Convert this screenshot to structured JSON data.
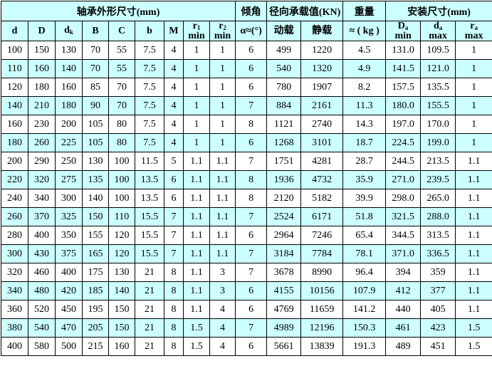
{
  "groups": [
    {
      "label": "轴承外形尺寸(mm)",
      "span": 9
    },
    {
      "label": "倾角",
      "span": 1
    },
    {
      "label": "径向承载值(KN)",
      "span": 2
    },
    {
      "label": "重量",
      "span": 1
    },
    {
      "label": "安装尺寸(mm)",
      "span": 3
    }
  ],
  "columns": [
    {
      "main": "d",
      "sub": "",
      "under": ""
    },
    {
      "main": "D",
      "sub": "",
      "under": ""
    },
    {
      "main": "d",
      "sub": "k",
      "under": ""
    },
    {
      "main": "B",
      "sub": "",
      "under": ""
    },
    {
      "main": "C",
      "sub": "",
      "under": ""
    },
    {
      "main": "b",
      "sub": "",
      "under": ""
    },
    {
      "main": "M",
      "sub": "",
      "under": ""
    },
    {
      "main": "r",
      "sub": "1",
      "under": "min"
    },
    {
      "main": "r",
      "sub": "2",
      "under": "min"
    },
    {
      "main": "α≈(°)",
      "sub": "",
      "under": ""
    },
    {
      "main": "动载",
      "sub": "",
      "under": ""
    },
    {
      "main": "静载",
      "sub": "",
      "under": ""
    },
    {
      "main": "≈ ( kg )",
      "sub": "",
      "under": ""
    },
    {
      "main": "D",
      "sub": "a",
      "under": "min"
    },
    {
      "main": "d",
      "sub": "a",
      "under": "max"
    },
    {
      "main": "r",
      "sub": "a",
      "under": "max"
    }
  ],
  "rows": [
    [
      "100",
      "150",
      "130",
      "70",
      "55",
      "7.5",
      "4",
      "1",
      "1",
      "6",
      "499",
      "1220",
      "4.5",
      "131.0",
      "109.5",
      "1"
    ],
    [
      "110",
      "160",
      "140",
      "70",
      "55",
      "7.5",
      "4",
      "1",
      "1",
      "6",
      "540",
      "1320",
      "4.9",
      "141.5",
      "121.0",
      "1"
    ],
    [
      "120",
      "180",
      "160",
      "85",
      "70",
      "7.5",
      "4",
      "1",
      "1",
      "6",
      "780",
      "1907",
      "8.2",
      "157.5",
      "135.5",
      "1"
    ],
    [
      "140",
      "210",
      "180",
      "90",
      "70",
      "7.5",
      "4",
      "1",
      "1",
      "7",
      "884",
      "2161",
      "11.3",
      "180.0",
      "155.5",
      "1"
    ],
    [
      "160",
      "230",
      "200",
      "105",
      "80",
      "7.5",
      "4",
      "1",
      "1",
      "8",
      "1121",
      "2740",
      "14.3",
      "197.0",
      "170.0",
      "1"
    ],
    [
      "180",
      "260",
      "225",
      "105",
      "80",
      "7.5",
      "4",
      "1",
      "1",
      "6",
      "1268",
      "3101",
      "18.7",
      "224.5",
      "199.0",
      "1"
    ],
    [
      "200",
      "290",
      "250",
      "130",
      "100",
      "11.5",
      "5",
      "1.1",
      "1.1",
      "7",
      "1751",
      "4281",
      "28.7",
      "244.5",
      "213.5",
      "1.1"
    ],
    [
      "220",
      "320",
      "275",
      "135",
      "100",
      "13.5",
      "6",
      "1.1",
      "1.1",
      "8",
      "1936",
      "4732",
      "35.9",
      "271.0",
      "239.5",
      "1.1"
    ],
    [
      "240",
      "340",
      "300",
      "140",
      "100",
      "13.5",
      "6",
      "1.1",
      "1.1",
      "8",
      "2120",
      "5182",
      "39.9",
      "298.0",
      "265.0",
      "1.1"
    ],
    [
      "260",
      "370",
      "325",
      "150",
      "110",
      "15.5",
      "7",
      "1.1",
      "1.1",
      "7",
      "2524",
      "6171",
      "51.8",
      "321.5",
      "288.0",
      "1.1"
    ],
    [
      "280",
      "400",
      "350",
      "155",
      "120",
      "15.5",
      "7",
      "1.1",
      "1.1",
      "6",
      "2964",
      "7246",
      "65.4",
      "344.5",
      "313.5",
      "1.1"
    ],
    [
      "300",
      "430",
      "375",
      "165",
      "120",
      "15.5",
      "7",
      "1.1",
      "1.1",
      "7",
      "3184",
      "7784",
      "78.1",
      "371.0",
      "336.5",
      "1.1"
    ],
    [
      "320",
      "460",
      "400",
      "175",
      "130",
      "21",
      "8",
      "1.1",
      "3",
      "7",
      "3678",
      "8990",
      "96.4",
      "394",
      "359",
      "1.1"
    ],
    [
      "340",
      "480",
      "420",
      "185",
      "140",
      "21",
      "8",
      "1.1",
      "3",
      "6",
      "4155",
      "10156",
      "107.9",
      "412",
      "377",
      "1.1"
    ],
    [
      "360",
      "520",
      "450",
      "195",
      "150",
      "21",
      "8",
      "1.1",
      "4",
      "6",
      "4769",
      "11659",
      "141.2",
      "440",
      "405",
      "1.1"
    ],
    [
      "380",
      "540",
      "470",
      "205",
      "150",
      "21",
      "8",
      "1.5",
      "4",
      "7",
      "4989",
      "12196",
      "150.3",
      "461",
      "423",
      "1.5"
    ],
    [
      "400",
      "580",
      "500",
      "215",
      "160",
      "21",
      "8",
      "1.5",
      "4",
      "6",
      "5661",
      "13839",
      "191.3",
      "489",
      "451",
      "1.5"
    ]
  ],
  "colors": {
    "header_bg": "#ccffff",
    "alt_row_bg": "#ccffff",
    "border": "#000000"
  }
}
